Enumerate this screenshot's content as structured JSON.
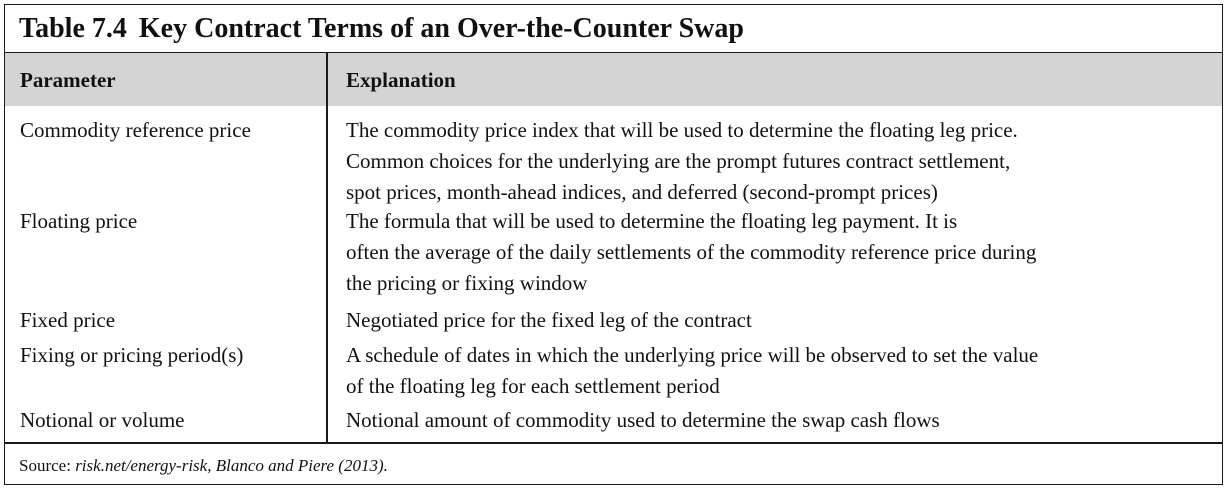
{
  "table": {
    "label": "Table 7.4",
    "caption": "Key Contract Terms of an Over-the-Counter Swap",
    "headers": [
      "Parameter",
      "Explanation"
    ],
    "rows": [
      {
        "parameter": "Commodity reference price",
        "explanation_lines": [
          "The commodity price index that will be used to determine the floating leg price.",
          "Common choices for the underlying are the prompt futures contract settlement,",
          "spot prices, month-ahead indices, and deferred (second-prompt prices)"
        ]
      },
      {
        "parameter": "Floating price",
        "explanation_lines": [
          "The formula that will be used to determine the floating leg payment. It is",
          "often the average of the daily settlements of the commodity reference price during",
          "the pricing or fixing window"
        ]
      },
      {
        "parameter": "Fixed price",
        "explanation_lines": [
          "Negotiated price for the fixed leg of the contract"
        ]
      },
      {
        "parameter": "Fixing or pricing period(s)",
        "explanation_lines": [
          "A schedule of dates in which the underlying price will be observed to set the value",
          "of the floating leg for each settlement period"
        ]
      },
      {
        "parameter": "Notional or volume",
        "explanation_lines": [
          "Notional amount of commodity used to determine the swap cash flows"
        ]
      }
    ],
    "source": {
      "prefix": "Source:",
      "citation": "risk.net/energy-risk, Blanco and Piere (2013)."
    }
  }
}
